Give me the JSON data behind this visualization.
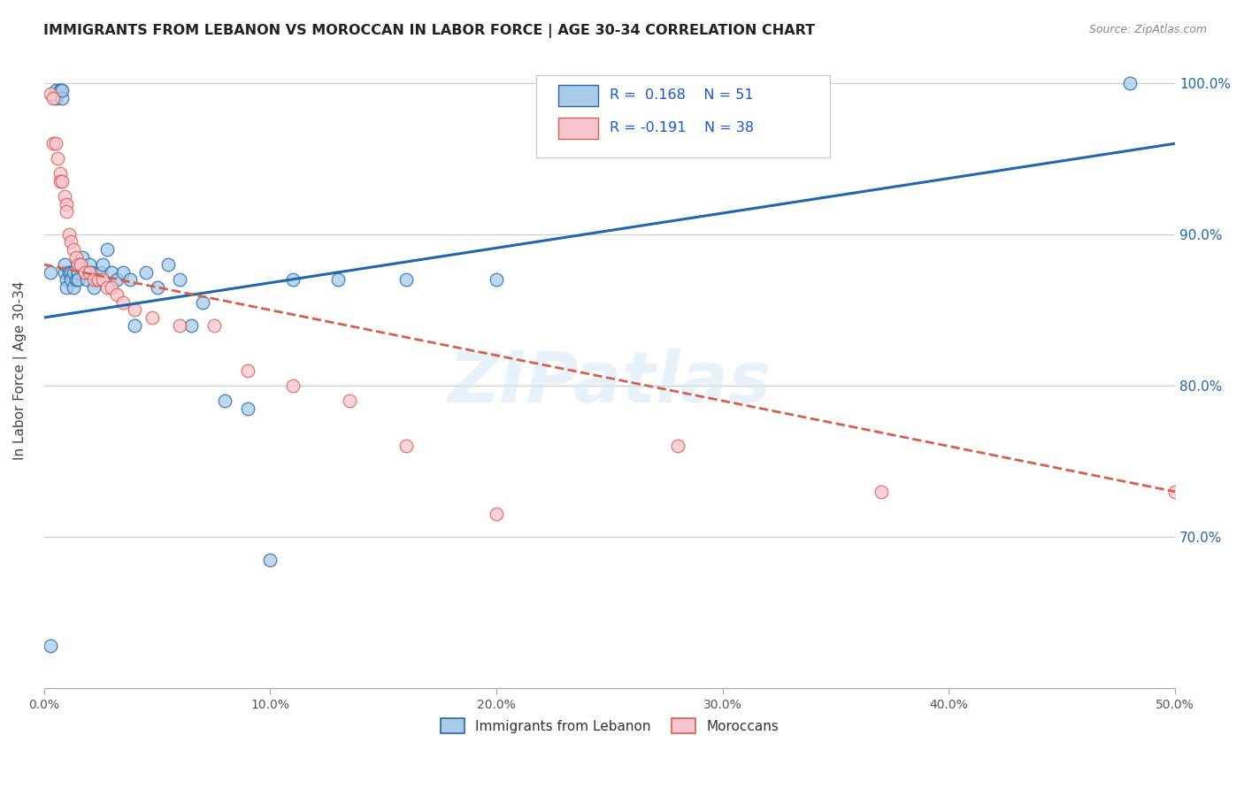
{
  "title": "IMMIGRANTS FROM LEBANON VS MOROCCAN IN LABOR FORCE | AGE 30-34 CORRELATION CHART",
  "source": "Source: ZipAtlas.com",
  "ylabel": "In Labor Force | Age 30-34",
  "xmin": 0.0,
  "xmax": 0.5,
  "ymin": 0.6,
  "ymax": 1.02,
  "xticks": [
    0.0,
    0.1,
    0.2,
    0.3,
    0.4,
    0.5
  ],
  "xtick_labels": [
    "0.0%",
    "10.0%",
    "20.0%",
    "30.0%",
    "40.0%",
    "50.0%"
  ],
  "yticks": [
    0.7,
    0.8,
    0.9,
    1.0
  ],
  "ytick_labels": [
    "70.0%",
    "80.0%",
    "90.0%",
    "100.0%"
  ],
  "legend_label1": "Immigrants from Lebanon",
  "legend_label2": "Moroccans",
  "blue_color": "#a8cce8",
  "pink_color": "#f7c5d0",
  "line_blue": "#2166ac",
  "line_pink": "#d6604d",
  "watermark": "ZIPatlas",
  "blue_x": [
    0.003,
    0.005,
    0.005,
    0.007,
    0.007,
    0.008,
    0.008,
    0.009,
    0.009,
    0.01,
    0.01,
    0.011,
    0.012,
    0.012,
    0.013,
    0.013,
    0.014,
    0.015,
    0.015,
    0.016,
    0.016,
    0.017,
    0.018,
    0.019,
    0.02,
    0.021,
    0.022,
    0.023,
    0.025,
    0.026,
    0.028,
    0.03,
    0.032,
    0.035,
    0.038,
    0.04,
    0.045,
    0.05,
    0.055,
    0.06,
    0.065,
    0.07,
    0.08,
    0.09,
    0.1,
    0.11,
    0.13,
    0.16,
    0.2,
    0.48,
    0.003
  ],
  "blue_y": [
    0.875,
    0.995,
    0.99,
    0.995,
    0.995,
    0.99,
    0.995,
    0.875,
    0.88,
    0.87,
    0.865,
    0.875,
    0.875,
    0.87,
    0.875,
    0.865,
    0.87,
    0.875,
    0.87,
    0.88,
    0.88,
    0.885,
    0.875,
    0.87,
    0.88,
    0.875,
    0.865,
    0.87,
    0.875,
    0.88,
    0.89,
    0.875,
    0.87,
    0.875,
    0.87,
    0.84,
    0.875,
    0.865,
    0.88,
    0.87,
    0.84,
    0.855,
    0.79,
    0.785,
    0.685,
    0.87,
    0.87,
    0.87,
    0.87,
    1.0,
    0.628
  ],
  "pink_x": [
    0.003,
    0.004,
    0.004,
    0.005,
    0.006,
    0.007,
    0.007,
    0.008,
    0.009,
    0.01,
    0.01,
    0.011,
    0.012,
    0.013,
    0.014,
    0.015,
    0.016,
    0.018,
    0.02,
    0.022,
    0.024,
    0.026,
    0.028,
    0.03,
    0.032,
    0.035,
    0.04,
    0.048,
    0.06,
    0.075,
    0.09,
    0.11,
    0.135,
    0.16,
    0.2,
    0.28,
    0.37,
    0.5
  ],
  "pink_y": [
    0.993,
    0.99,
    0.96,
    0.96,
    0.95,
    0.94,
    0.935,
    0.935,
    0.925,
    0.92,
    0.915,
    0.9,
    0.895,
    0.89,
    0.885,
    0.88,
    0.88,
    0.875,
    0.875,
    0.87,
    0.87,
    0.87,
    0.865,
    0.865,
    0.86,
    0.855,
    0.85,
    0.845,
    0.84,
    0.84,
    0.81,
    0.8,
    0.79,
    0.76,
    0.715,
    0.76,
    0.73,
    0.73
  ],
  "blue_line_x0": 0.0,
  "blue_line_x1": 0.5,
  "blue_line_y0": 0.845,
  "blue_line_y1": 0.96,
  "pink_line_x0": 0.0,
  "pink_line_x1": 0.5,
  "pink_line_y0": 0.88,
  "pink_line_y1": 0.73
}
